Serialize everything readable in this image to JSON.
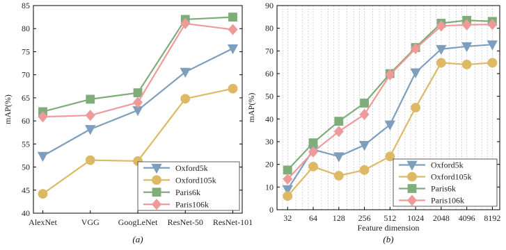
{
  "chart_data": [
    {
      "type": "line",
      "caption": "(a)",
      "ylabel": "mAP(%)",
      "xlabel": "",
      "categories": [
        "AlexNet",
        "VGG",
        "GoogLeNet",
        "ResNet-50",
        "ResNet-101"
      ],
      "ylim": [
        40,
        85
      ],
      "yticks": [
        40,
        45,
        50,
        55,
        60,
        65,
        70,
        75,
        80,
        85
      ],
      "grid": false,
      "legend_position": "bottom-right",
      "series": [
        {
          "name": "Oxford5k",
          "color": "#7d9ebd",
          "marker": "triangle-down",
          "values": [
            52.4,
            58.2,
            62.3,
            70.6,
            75.7
          ]
        },
        {
          "name": "Oxford105k",
          "color": "#ddb865",
          "marker": "circle",
          "values": [
            44.2,
            51.5,
            51.3,
            64.8,
            67.0
          ]
        },
        {
          "name": "Paris6k",
          "color": "#7ead7a",
          "marker": "square",
          "values": [
            62.0,
            64.7,
            66.1,
            82.0,
            82.5
          ]
        },
        {
          "name": "Paris106k",
          "color": "#ef9a9a",
          "marker": "diamond",
          "values": [
            60.9,
            61.2,
            64.0,
            81.1,
            79.8
          ]
        }
      ]
    },
    {
      "type": "line",
      "caption": "(b)",
      "ylabel": "mAP(%)",
      "xlabel": "Feature dimension",
      "xscale": "log",
      "x": [
        32,
        64,
        128,
        256,
        512,
        1024,
        2048,
        4096,
        8192
      ],
      "xticks": [
        32,
        64,
        128,
        256,
        512,
        1024,
        2048,
        4096,
        8192
      ],
      "xlim": [
        24,
        10000
      ],
      "ylim": [
        0,
        90
      ],
      "yticks": [
        0,
        10,
        20,
        30,
        40,
        50,
        60,
        70,
        80,
        90
      ],
      "grid": "vertical dashed",
      "legend_position": "bottom-right",
      "series": [
        {
          "name": "Oxford5k",
          "color": "#7d9ebd",
          "marker": "triangle-down",
          "values": [
            9.0,
            26.5,
            23.5,
            28.5,
            37.5,
            60.5,
            70.8,
            72.0,
            72.8
          ]
        },
        {
          "name": "Oxford105k",
          "color": "#ddb865",
          "marker": "circle",
          "values": [
            6.0,
            19.0,
            15.0,
            17.5,
            23.5,
            45.0,
            64.8,
            64.0,
            64.8
          ]
        },
        {
          "name": "Paris6k",
          "color": "#7ead7a",
          "marker": "square",
          "values": [
            17.5,
            29.5,
            39.0,
            47.0,
            60.0,
            71.5,
            82.2,
            83.5,
            83.0
          ]
        },
        {
          "name": "Paris106k",
          "color": "#ef9a9a",
          "marker": "diamond",
          "values": [
            13.5,
            25.5,
            34.5,
            42.0,
            59.5,
            71.0,
            81.0,
            81.5,
            81.7
          ]
        }
      ]
    }
  ]
}
